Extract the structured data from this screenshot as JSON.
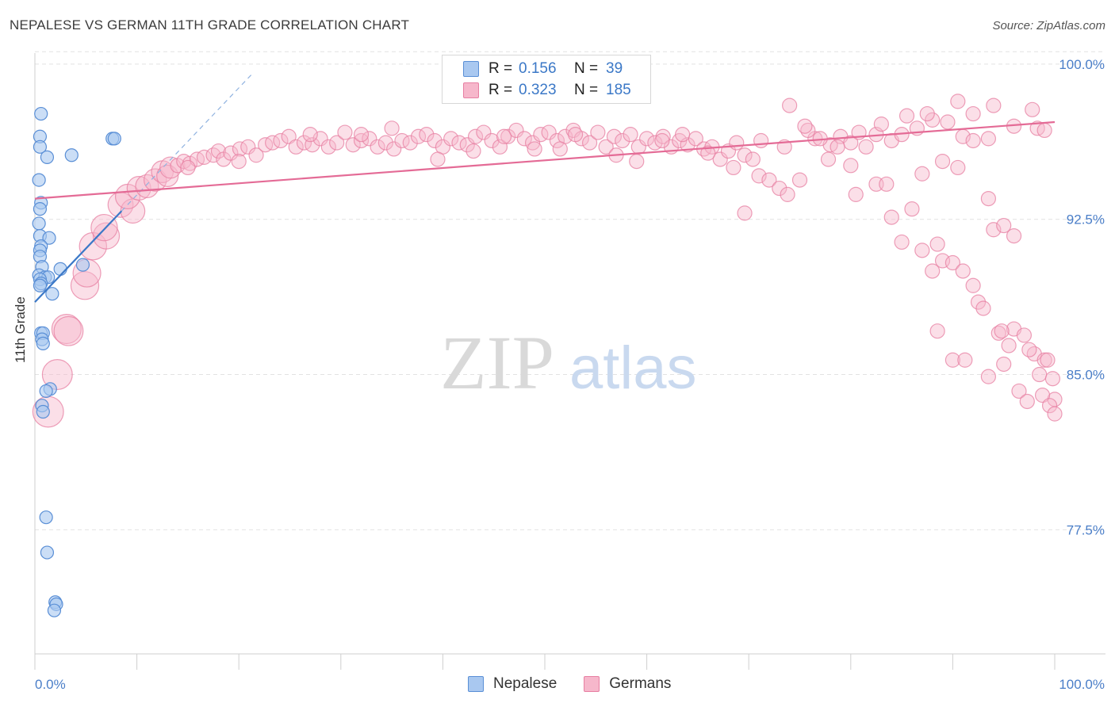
{
  "header": {
    "title": "NEPALESE VS GERMAN 11TH GRADE CORRELATION CHART",
    "source": "Source: ZipAtlas.com"
  },
  "watermark": {
    "zip": "ZIP",
    "atlas": "atlas"
  },
  "colors": {
    "nepalese_fill": "#a9c8f0",
    "nepalese_stroke": "#5a8fd6",
    "nepalese_line": "#3b78c7",
    "germans_fill": "#f6b7cb",
    "germans_stroke": "#e77fa2",
    "germans_line": "#e46b96",
    "tick_label": "#4a7ec8",
    "grid": "#e2e2e2"
  },
  "legend_top": {
    "rows": [
      {
        "r_label": "R =",
        "r_value": "0.156",
        "n_label": "N =",
        "n_value": "39"
      },
      {
        "r_label": "R =",
        "r_value": "0.323",
        "n_label": "N =",
        "n_value": "185"
      }
    ]
  },
  "legend_bottom": [
    "Nepalese",
    "Germans"
  ],
  "chart_data": {
    "type": "scatter",
    "title": "NEPALESE VS GERMAN 11TH GRADE CORRELATION CHART",
    "xlabel": "",
    "ylabel": "11th Grade",
    "xlim": [
      0,
      100
    ],
    "ylim": [
      71.5,
      100.8
    ],
    "x_tick_labels": [
      "0.0%",
      "100.0%"
    ],
    "y_ticks": [
      77.5,
      85.0,
      92.5,
      100.0
    ],
    "y_tick_labels": [
      "77.5%",
      "85.0%",
      "92.5%",
      "100.0%"
    ],
    "grid": "horizontal dashed",
    "legend_position": "top-center",
    "series": [
      {
        "name": "Nepalese",
        "trend": {
          "x0": 0,
          "y0": 88.5,
          "x1": 8.5,
          "y1": 92.9
        },
        "points": [
          [
            0.6,
            97.6
          ],
          [
            0.5,
            96.5
          ],
          [
            0.5,
            96.0
          ],
          [
            1.2,
            95.5
          ],
          [
            3.6,
            95.6
          ],
          [
            7.6,
            96.4
          ],
          [
            7.8,
            96.4
          ],
          [
            0.4,
            94.4
          ],
          [
            0.6,
            93.3
          ],
          [
            0.5,
            93.0
          ],
          [
            0.4,
            92.3
          ],
          [
            0.5,
            91.7
          ],
          [
            1.4,
            91.6
          ],
          [
            0.6,
            91.2
          ],
          [
            0.5,
            91.0
          ],
          [
            0.5,
            90.7
          ],
          [
            0.7,
            90.2
          ],
          [
            2.5,
            90.1
          ],
          [
            4.7,
            90.3
          ],
          [
            0.4,
            89.8
          ],
          [
            1.0,
            89.7
          ],
          [
            1.3,
            89.7
          ],
          [
            0.5,
            89.6
          ],
          [
            0.6,
            89.4
          ],
          [
            0.5,
            89.3
          ],
          [
            1.7,
            88.9
          ],
          [
            0.6,
            87.0
          ],
          [
            0.8,
            87.0
          ],
          [
            0.7,
            86.7
          ],
          [
            0.8,
            86.5
          ],
          [
            1.5,
            84.3
          ],
          [
            1.1,
            84.2
          ],
          [
            0.7,
            83.5
          ],
          [
            0.8,
            83.2
          ],
          [
            1.1,
            78.1
          ],
          [
            1.2,
            76.4
          ],
          [
            2.0,
            74.0
          ],
          [
            2.1,
            73.9
          ],
          [
            1.9,
            73.6
          ]
        ]
      },
      {
        "name": "Germans",
        "trend": {
          "x0": 0,
          "y0": 93.5,
          "x1": 100,
          "y1": 97.2
        },
        "points": [
          [
            1.3,
            83.2
          ],
          [
            2.2,
            85.0
          ],
          [
            3.1,
            87.2
          ],
          [
            3.3,
            87.1
          ],
          [
            4.9,
            89.3
          ],
          [
            5.1,
            89.9
          ],
          [
            5.7,
            91.2
          ],
          [
            7.0,
            91.7
          ],
          [
            6.8,
            92.1
          ],
          [
            8.4,
            93.2
          ],
          [
            9.6,
            92.9
          ],
          [
            9.1,
            93.6
          ],
          [
            10.2,
            94.0
          ],
          [
            11.0,
            94.1
          ],
          [
            11.8,
            94.4
          ],
          [
            12.5,
            94.8
          ],
          [
            13.0,
            94.6
          ],
          [
            13.3,
            95.0
          ],
          [
            14.0,
            95.1
          ],
          [
            14.6,
            95.3
          ],
          [
            15.2,
            95.2
          ],
          [
            15.9,
            95.4
          ],
          [
            16.6,
            95.5
          ],
          [
            17.5,
            95.6
          ],
          [
            18.0,
            95.8
          ],
          [
            18.5,
            95.4
          ],
          [
            19.2,
            95.7
          ],
          [
            20.1,
            95.9
          ],
          [
            20.9,
            96.0
          ],
          [
            21.7,
            95.6
          ],
          [
            22.6,
            96.1
          ],
          [
            23.3,
            96.2
          ],
          [
            24.1,
            96.3
          ],
          [
            24.9,
            96.5
          ],
          [
            25.6,
            96.0
          ],
          [
            26.4,
            96.2
          ],
          [
            27.2,
            96.1
          ],
          [
            28.0,
            96.4
          ],
          [
            28.8,
            96.0
          ],
          [
            29.6,
            96.2
          ],
          [
            30.4,
            96.7
          ],
          [
            31.2,
            96.1
          ],
          [
            32.0,
            96.3
          ],
          [
            32.8,
            96.4
          ],
          [
            33.6,
            96.0
          ],
          [
            34.4,
            96.2
          ],
          [
            35.2,
            95.9
          ],
          [
            36.0,
            96.3
          ],
          [
            36.8,
            96.2
          ],
          [
            37.6,
            96.5
          ],
          [
            38.4,
            96.6
          ],
          [
            39.2,
            96.3
          ],
          [
            40.0,
            96.0
          ],
          [
            40.8,
            96.4
          ],
          [
            41.6,
            96.2
          ],
          [
            42.4,
            96.1
          ],
          [
            43.2,
            96.5
          ],
          [
            44.0,
            96.7
          ],
          [
            44.8,
            96.3
          ],
          [
            45.6,
            96.0
          ],
          [
            46.4,
            96.5
          ],
          [
            47.2,
            96.8
          ],
          [
            48.0,
            96.4
          ],
          [
            48.8,
            96.2
          ],
          [
            49.6,
            96.6
          ],
          [
            50.4,
            96.7
          ],
          [
            51.2,
            96.3
          ],
          [
            52.0,
            96.5
          ],
          [
            52.8,
            96.8
          ],
          [
            53.6,
            96.4
          ],
          [
            54.4,
            96.2
          ],
          [
            55.2,
            96.7
          ],
          [
            56.0,
            96.0
          ],
          [
            56.8,
            96.5
          ],
          [
            57.6,
            96.3
          ],
          [
            58.4,
            96.6
          ],
          [
            59.2,
            96.0
          ],
          [
            60.0,
            96.4
          ],
          [
            60.8,
            96.2
          ],
          [
            61.6,
            96.5
          ],
          [
            62.4,
            96.0
          ],
          [
            63.2,
            96.3
          ],
          [
            64.0,
            96.1
          ],
          [
            64.8,
            96.4
          ],
          [
            65.6,
            95.9
          ],
          [
            66.4,
            96.0
          ],
          [
            67.2,
            95.4
          ],
          [
            68.0,
            95.8
          ],
          [
            68.8,
            96.2
          ],
          [
            69.6,
            95.6
          ],
          [
            70.4,
            95.4
          ],
          [
            71.2,
            96.3
          ],
          [
            15.0,
            95.0
          ],
          [
            20.0,
            95.3
          ],
          [
            27.0,
            96.6
          ],
          [
            32.0,
            96.6
          ],
          [
            35.0,
            96.9
          ],
          [
            39.5,
            95.4
          ],
          [
            43.0,
            95.8
          ],
          [
            46.0,
            96.5
          ],
          [
            49.0,
            95.9
          ],
          [
            51.5,
            95.9
          ],
          [
            53.0,
            96.6
          ],
          [
            57.0,
            95.6
          ],
          [
            59.0,
            95.3
          ],
          [
            61.5,
            96.3
          ],
          [
            63.5,
            96.6
          ],
          [
            66.0,
            95.7
          ],
          [
            68.5,
            95.0
          ],
          [
            71.0,
            94.6
          ],
          [
            72.0,
            94.4
          ],
          [
            73.0,
            94.0
          ],
          [
            73.8,
            93.7
          ],
          [
            75.0,
            94.4
          ],
          [
            76.5,
            96.4
          ],
          [
            78.0,
            96.1
          ],
          [
            79.0,
            96.5
          ],
          [
            80.0,
            96.2
          ],
          [
            81.5,
            96.0
          ],
          [
            82.5,
            96.6
          ],
          [
            84.0,
            96.3
          ],
          [
            85.0,
            96.6
          ],
          [
            86.5,
            96.9
          ],
          [
            88.0,
            97.3
          ],
          [
            89.5,
            97.2
          ],
          [
            91.0,
            96.5
          ],
          [
            92.0,
            96.3
          ],
          [
            73.5,
            96.0
          ],
          [
            75.8,
            96.8
          ],
          [
            77.0,
            96.4
          ],
          [
            78.7,
            96.0
          ],
          [
            80.8,
            96.7
          ],
          [
            83.0,
            97.1
          ],
          [
            85.5,
            97.5
          ],
          [
            87.5,
            97.6
          ],
          [
            69.6,
            92.8
          ],
          [
            74.0,
            98.0
          ],
          [
            75.5,
            97.0
          ],
          [
            77.8,
            95.4
          ],
          [
            80.0,
            95.1
          ],
          [
            80.5,
            93.7
          ],
          [
            82.5,
            94.2
          ],
          [
            83.5,
            94.2
          ],
          [
            87.0,
            94.7
          ],
          [
            89.0,
            95.3
          ],
          [
            90.5,
            95.0
          ],
          [
            85.0,
            91.4
          ],
          [
            88.5,
            91.3
          ],
          [
            93.5,
            93.5
          ],
          [
            94.0,
            92.0
          ],
          [
            95.0,
            92.2
          ],
          [
            96.0,
            91.7
          ],
          [
            84.0,
            92.6
          ],
          [
            86.0,
            93.0
          ],
          [
            87.0,
            91.0
          ],
          [
            88.0,
            90.0
          ],
          [
            89.0,
            90.5
          ],
          [
            90.0,
            90.4
          ],
          [
            91.0,
            90.0
          ],
          [
            92.0,
            89.3
          ],
          [
            92.5,
            88.5
          ],
          [
            93.0,
            88.2
          ],
          [
            94.5,
            87.0
          ],
          [
            95.5,
            86.4
          ],
          [
            96.0,
            87.2
          ],
          [
            97.0,
            86.9
          ],
          [
            98.0,
            86.0
          ],
          [
            99.0,
            85.7
          ],
          [
            94.8,
            87.1
          ],
          [
            97.5,
            86.2
          ],
          [
            98.5,
            85.0
          ],
          [
            99.3,
            85.7
          ],
          [
            99.8,
            84.8
          ],
          [
            100.0,
            83.8
          ],
          [
            88.5,
            87.1
          ],
          [
            90.0,
            85.7
          ],
          [
            91.2,
            85.7
          ],
          [
            93.5,
            84.9
          ],
          [
            95.0,
            85.5
          ],
          [
            96.5,
            84.2
          ],
          [
            97.3,
            83.7
          ],
          [
            98.8,
            84.0
          ],
          [
            99.5,
            83.5
          ],
          [
            100.0,
            83.1
          ],
          [
            92.0,
            97.6
          ],
          [
            90.5,
            98.2
          ],
          [
            94.0,
            98.0
          ],
          [
            93.5,
            96.4
          ],
          [
            96.0,
            97.0
          ],
          [
            97.8,
            97.8
          ],
          [
            98.3,
            96.9
          ],
          [
            99.0,
            96.8
          ]
        ]
      }
    ]
  }
}
